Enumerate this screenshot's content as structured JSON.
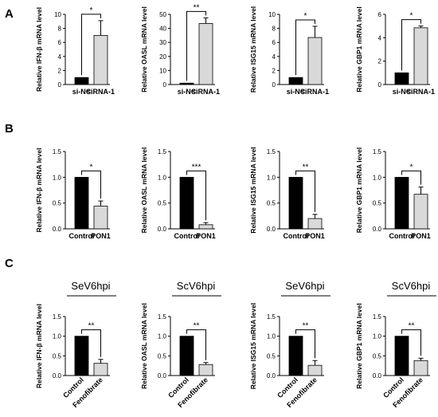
{
  "rows": [
    {
      "label": "A",
      "panels": [
        {
          "ylabel": "Relative IFN-β mRNA level",
          "ylim": [
            0,
            10
          ],
          "yticks": [
            "0",
            "2",
            "4",
            "6",
            "8",
            "10"
          ],
          "categories": [
            "si-NC",
            "siRNA-1"
          ],
          "values": [
            1.0,
            7.0
          ],
          "errors": [
            0,
            2.1
          ],
          "sig": "*",
          "fills": [
            "#000000",
            "#d9d9d9"
          ]
        },
        {
          "ylabel": "Relative OASL mRNA level",
          "ylim": [
            0,
            50
          ],
          "yticks": [
            "0",
            "10",
            "20",
            "30",
            "40",
            "50"
          ],
          "categories": [
            "si-NC",
            "siRNA-1"
          ],
          "values": [
            1.0,
            43.5
          ],
          "errors": [
            0,
            4.0
          ],
          "sig": "**",
          "fills": [
            "#000000",
            "#d9d9d9"
          ]
        },
        {
          "ylabel": "Relative ISG15 mRNA level",
          "ylim": [
            0,
            10
          ],
          "yticks": [
            "0",
            "2",
            "4",
            "6",
            "8",
            "10"
          ],
          "categories": [
            "si-NC",
            "siRNA-1"
          ],
          "values": [
            1.0,
            6.7
          ],
          "errors": [
            0,
            1.6
          ],
          "sig": "*",
          "fills": [
            "#000000",
            "#d9d9d9"
          ]
        },
        {
          "ylabel": "Relative GBP1 mRNA level",
          "ylim": [
            0,
            6
          ],
          "yticks": [
            "0",
            "2",
            "4",
            "6"
          ],
          "categories": [
            "si-NC",
            "siRNA-1"
          ],
          "values": [
            1.0,
            4.85
          ],
          "errors": [
            0,
            0.15
          ],
          "sig": "*",
          "fills": [
            "#000000",
            "#d9d9d9"
          ]
        }
      ]
    },
    {
      "label": "B",
      "panels": [
        {
          "ylabel": "Relative IFN-β mRNA level",
          "ylim": [
            0,
            1.5
          ],
          "yticks": [
            "0.0",
            "0.5",
            "1.0",
            "1.5"
          ],
          "categories": [
            "Control",
            "PON1"
          ],
          "values": [
            1.0,
            0.44
          ],
          "errors": [
            0,
            0.1
          ],
          "sig": "*",
          "fills": [
            "#000000",
            "#d9d9d9"
          ]
        },
        {
          "ylabel": "Relative OASL mRNA level",
          "ylim": [
            0,
            1.5
          ],
          "yticks": [
            "0.0",
            "0.5",
            "1.0",
            "1.5"
          ],
          "categories": [
            "Control",
            "PON1"
          ],
          "values": [
            1.0,
            0.08
          ],
          "errors": [
            0,
            0.04
          ],
          "sig": "***",
          "fills": [
            "#000000",
            "#d9d9d9"
          ]
        },
        {
          "ylabel": "Relative ISG15 mRNA level",
          "ylim": [
            0,
            1.5
          ],
          "yticks": [
            "0.0",
            "0.5",
            "1.0",
            "1.5"
          ],
          "categories": [
            "Control",
            "PON1"
          ],
          "values": [
            1.0,
            0.2
          ],
          "errors": [
            0,
            0.08
          ],
          "sig": "**",
          "fills": [
            "#000000",
            "#d9d9d9"
          ]
        },
        {
          "ylabel": "Relative GBP1 mRNA level",
          "ylim": [
            0,
            1.5
          ],
          "yticks": [
            "0.0",
            "0.5",
            "1.0",
            "1.5"
          ],
          "categories": [
            "Control",
            "PON1"
          ],
          "values": [
            1.0,
            0.67
          ],
          "errors": [
            0,
            0.14
          ],
          "sig": "*",
          "fills": [
            "#000000",
            "#d9d9d9"
          ]
        }
      ]
    },
    {
      "label": "C",
      "panels": [
        {
          "title": "SeV6hpi",
          "ylabel": "Relative IFN-β mRNA level",
          "ylim": [
            0,
            1.5
          ],
          "yticks": [
            "0.0",
            "0.5",
            "1.0",
            "1.5"
          ],
          "categories": [
            "Control",
            "Fenofibrate"
          ],
          "values": [
            1.0,
            0.31
          ],
          "errors": [
            0,
            0.1
          ],
          "sig": "**",
          "fills": [
            "#000000",
            "#d9d9d9"
          ]
        },
        {
          "title": "ScV6hpi",
          "ylabel": "Relative OASL mRNA level",
          "ylim": [
            0,
            1.5
          ],
          "yticks": [
            "0.0",
            "0.5",
            "1.0",
            "1.5"
          ],
          "categories": [
            "Control",
            "Fenofibrate"
          ],
          "values": [
            1.0,
            0.28
          ],
          "errors": [
            0,
            0.05
          ],
          "sig": "**",
          "fills": [
            "#000000",
            "#d9d9d9"
          ]
        },
        {
          "title": "SeV6hpi",
          "ylabel": "Relative ISG15 mRNA level",
          "ylim": [
            0,
            1.5
          ],
          "yticks": [
            "0.0",
            "0.5",
            "1.0",
            "1.5"
          ],
          "categories": [
            "Control",
            "Fenofibrate"
          ],
          "values": [
            1.0,
            0.26
          ],
          "errors": [
            0,
            0.12
          ],
          "sig": "**",
          "fills": [
            "#000000",
            "#d9d9d9"
          ]
        },
        {
          "title": "ScV6hpi",
          "ylabel": "Relative GBP1 mRNA level",
          "ylim": [
            0,
            1.5
          ],
          "yticks": [
            "0.0",
            "0.5",
            "1.0",
            "1.5"
          ],
          "categories": [
            "Control",
            "Fenofibrate"
          ],
          "values": [
            1.0,
            0.38
          ],
          "errors": [
            0,
            0.06
          ],
          "sig": "**",
          "fills": [
            "#000000",
            "#d9d9d9"
          ]
        }
      ]
    }
  ],
  "chart_data": [
    {
      "type": "bar",
      "panel": "A",
      "ylabel": "Relative IFN-β mRNA level",
      "categories": [
        "si-NC",
        "siRNA-1"
      ],
      "values": [
        1.0,
        7.0
      ],
      "ylim": [
        0,
        10
      ],
      "annotations": [
        "*"
      ]
    },
    {
      "type": "bar",
      "panel": "A",
      "ylabel": "Relative OASL mRNA level",
      "categories": [
        "si-NC",
        "siRNA-1"
      ],
      "values": [
        1.0,
        43.5
      ],
      "ylim": [
        0,
        50
      ],
      "annotations": [
        "**"
      ]
    },
    {
      "type": "bar",
      "panel": "A",
      "ylabel": "Relative ISG15 mRNA level",
      "categories": [
        "si-NC",
        "siRNA-1"
      ],
      "values": [
        1.0,
        6.7
      ],
      "ylim": [
        0,
        10
      ],
      "annotations": [
        "*"
      ]
    },
    {
      "type": "bar",
      "panel": "A",
      "ylabel": "Relative GBP1 mRNA level",
      "categories": [
        "si-NC",
        "siRNA-1"
      ],
      "values": [
        1.0,
        4.85
      ],
      "ylim": [
        0,
        6
      ],
      "annotations": [
        "*"
      ]
    },
    {
      "type": "bar",
      "panel": "B",
      "ylabel": "Relative IFN-β mRNA level",
      "categories": [
        "Control",
        "PON1"
      ],
      "values": [
        1.0,
        0.44
      ],
      "ylim": [
        0,
        1.5
      ],
      "annotations": [
        "*"
      ]
    },
    {
      "type": "bar",
      "panel": "B",
      "ylabel": "Relative OASL mRNA level",
      "categories": [
        "Control",
        "PON1"
      ],
      "values": [
        1.0,
        0.08
      ],
      "ylim": [
        0,
        1.5
      ],
      "annotations": [
        "***"
      ]
    },
    {
      "type": "bar",
      "panel": "B",
      "ylabel": "Relative ISG15 mRNA level",
      "categories": [
        "Control",
        "PON1"
      ],
      "values": [
        1.0,
        0.2
      ],
      "ylim": [
        0,
        1.5
      ],
      "annotations": [
        "**"
      ]
    },
    {
      "type": "bar",
      "panel": "B",
      "ylabel": "Relative GBP1 mRNA level",
      "categories": [
        "Control",
        "PON1"
      ],
      "values": [
        1.0,
        0.67
      ],
      "ylim": [
        0,
        1.5
      ],
      "annotations": [
        "*"
      ]
    },
    {
      "type": "bar",
      "panel": "C",
      "title": "SeV6hpi",
      "ylabel": "Relative IFN-β mRNA level",
      "categories": [
        "Control",
        "Fenofibrate"
      ],
      "values": [
        1.0,
        0.31
      ],
      "ylim": [
        0,
        1.5
      ],
      "annotations": [
        "**"
      ]
    },
    {
      "type": "bar",
      "panel": "C",
      "title": "ScV6hpi",
      "ylabel": "Relative OASL mRNA level",
      "categories": [
        "Control",
        "Fenofibrate"
      ],
      "values": [
        1.0,
        0.28
      ],
      "ylim": [
        0,
        1.5
      ],
      "annotations": [
        "**"
      ]
    },
    {
      "type": "bar",
      "panel": "C",
      "title": "SeV6hpi",
      "ylabel": "Relative ISG15 mRNA level",
      "categories": [
        "Control",
        "Fenofibrate"
      ],
      "values": [
        1.0,
        0.26
      ],
      "ylim": [
        0,
        1.5
      ],
      "annotations": [
        "**"
      ]
    },
    {
      "type": "bar",
      "panel": "C",
      "title": "ScV6hpi",
      "ylabel": "Relative GBP1 mRNA level",
      "categories": [
        "Control",
        "Fenofibrate"
      ],
      "values": [
        1.0,
        0.38
      ],
      "ylim": [
        0,
        1.5
      ],
      "annotations": [
        "**"
      ]
    }
  ]
}
